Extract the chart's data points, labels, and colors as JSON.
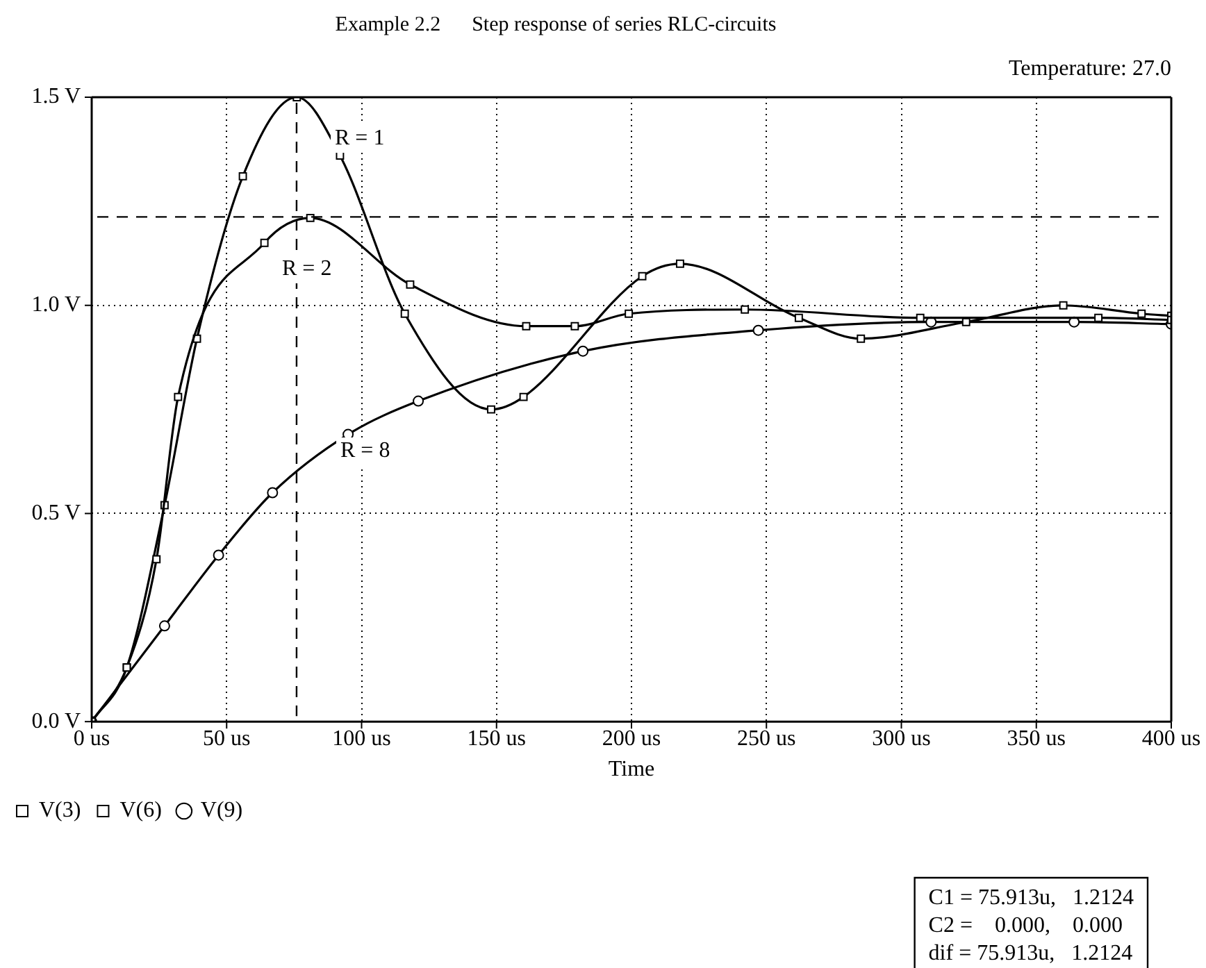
{
  "chart_data": {
    "type": "line",
    "title": "Example 2.2      Step response of series RLC-circuits",
    "xlabel": "Time",
    "xlim": [
      0,
      400
    ],
    "xticks": [
      {
        "value": 0,
        "label": "0 us"
      },
      {
        "value": 50,
        "label": "50 us"
      },
      {
        "value": 100,
        "label": "100 us"
      },
      {
        "value": 150,
        "label": "150 us"
      },
      {
        "value": 200,
        "label": "200 us"
      },
      {
        "value": 250,
        "label": "250 us"
      },
      {
        "value": 300,
        "label": "300 us"
      },
      {
        "value": 350,
        "label": "350 us"
      },
      {
        "value": 400,
        "label": "400 us"
      }
    ],
    "ylim": [
      0,
      1.5
    ],
    "yticks": [
      {
        "value": 0,
        "label": "0.0 V"
      },
      {
        "value": 0.5,
        "label": "0.5 V"
      },
      {
        "value": 1,
        "label": "1.0 V"
      },
      {
        "value": 1.5,
        "label": "1.5 V"
      }
    ],
    "grid": true,
    "legend": "bottom left",
    "line_style": "solid",
    "series": [
      {
        "name": "V(3)",
        "color": "#000000",
        "marker": "square",
        "x": [
          0,
          13,
          24,
          32,
          64,
          81,
          118,
          161,
          179,
          199,
          242,
          307,
          373,
          400
        ],
        "values": [
          0,
          0.13,
          0.39,
          0.78,
          1.15,
          1.21,
          1.05,
          0.95,
          0.95,
          0.98,
          0.99,
          0.97,
          0.97,
          0.965
        ]
      },
      {
        "name": "V(6)",
        "color": "#000000",
        "marker": "square",
        "x": [
          0,
          13,
          27,
          39,
          56,
          76,
          92,
          116,
          148,
          160,
          204,
          218,
          262,
          285,
          324,
          360,
          389,
          400
        ],
        "values": [
          0,
          0.13,
          0.52,
          0.92,
          1.31,
          1.5,
          1.36,
          0.98,
          0.75,
          0.78,
          1.07,
          1.1,
          0.97,
          0.92,
          0.96,
          1.0,
          0.98,
          0.975
        ]
      },
      {
        "name": "V(9)",
        "color": "#000000",
        "marker": "circle",
        "x": [
          0,
          27,
          47,
          67,
          95,
          121,
          182,
          247,
          311,
          364,
          400
        ],
        "values": [
          0,
          0.23,
          0.4,
          0.55,
          0.69,
          0.77,
          0.89,
          0.94,
          0.96,
          0.96,
          0.955
        ]
      }
    ],
    "ref_lines": [
      {
        "axis": "y",
        "value": 1.2124,
        "line_style": "dashed"
      },
      {
        "axis": "x",
        "value": 75.913,
        "line_style": "dashed"
      }
    ],
    "annotations": [
      "Temperature: 27.0",
      "R = 1",
      "R = 2",
      "R = 8",
      "C1 = 75.913u,   1.2124",
      "C2 =    0.000,    0.000",
      "dif = 75.913u,   1.2124"
    ]
  }
}
